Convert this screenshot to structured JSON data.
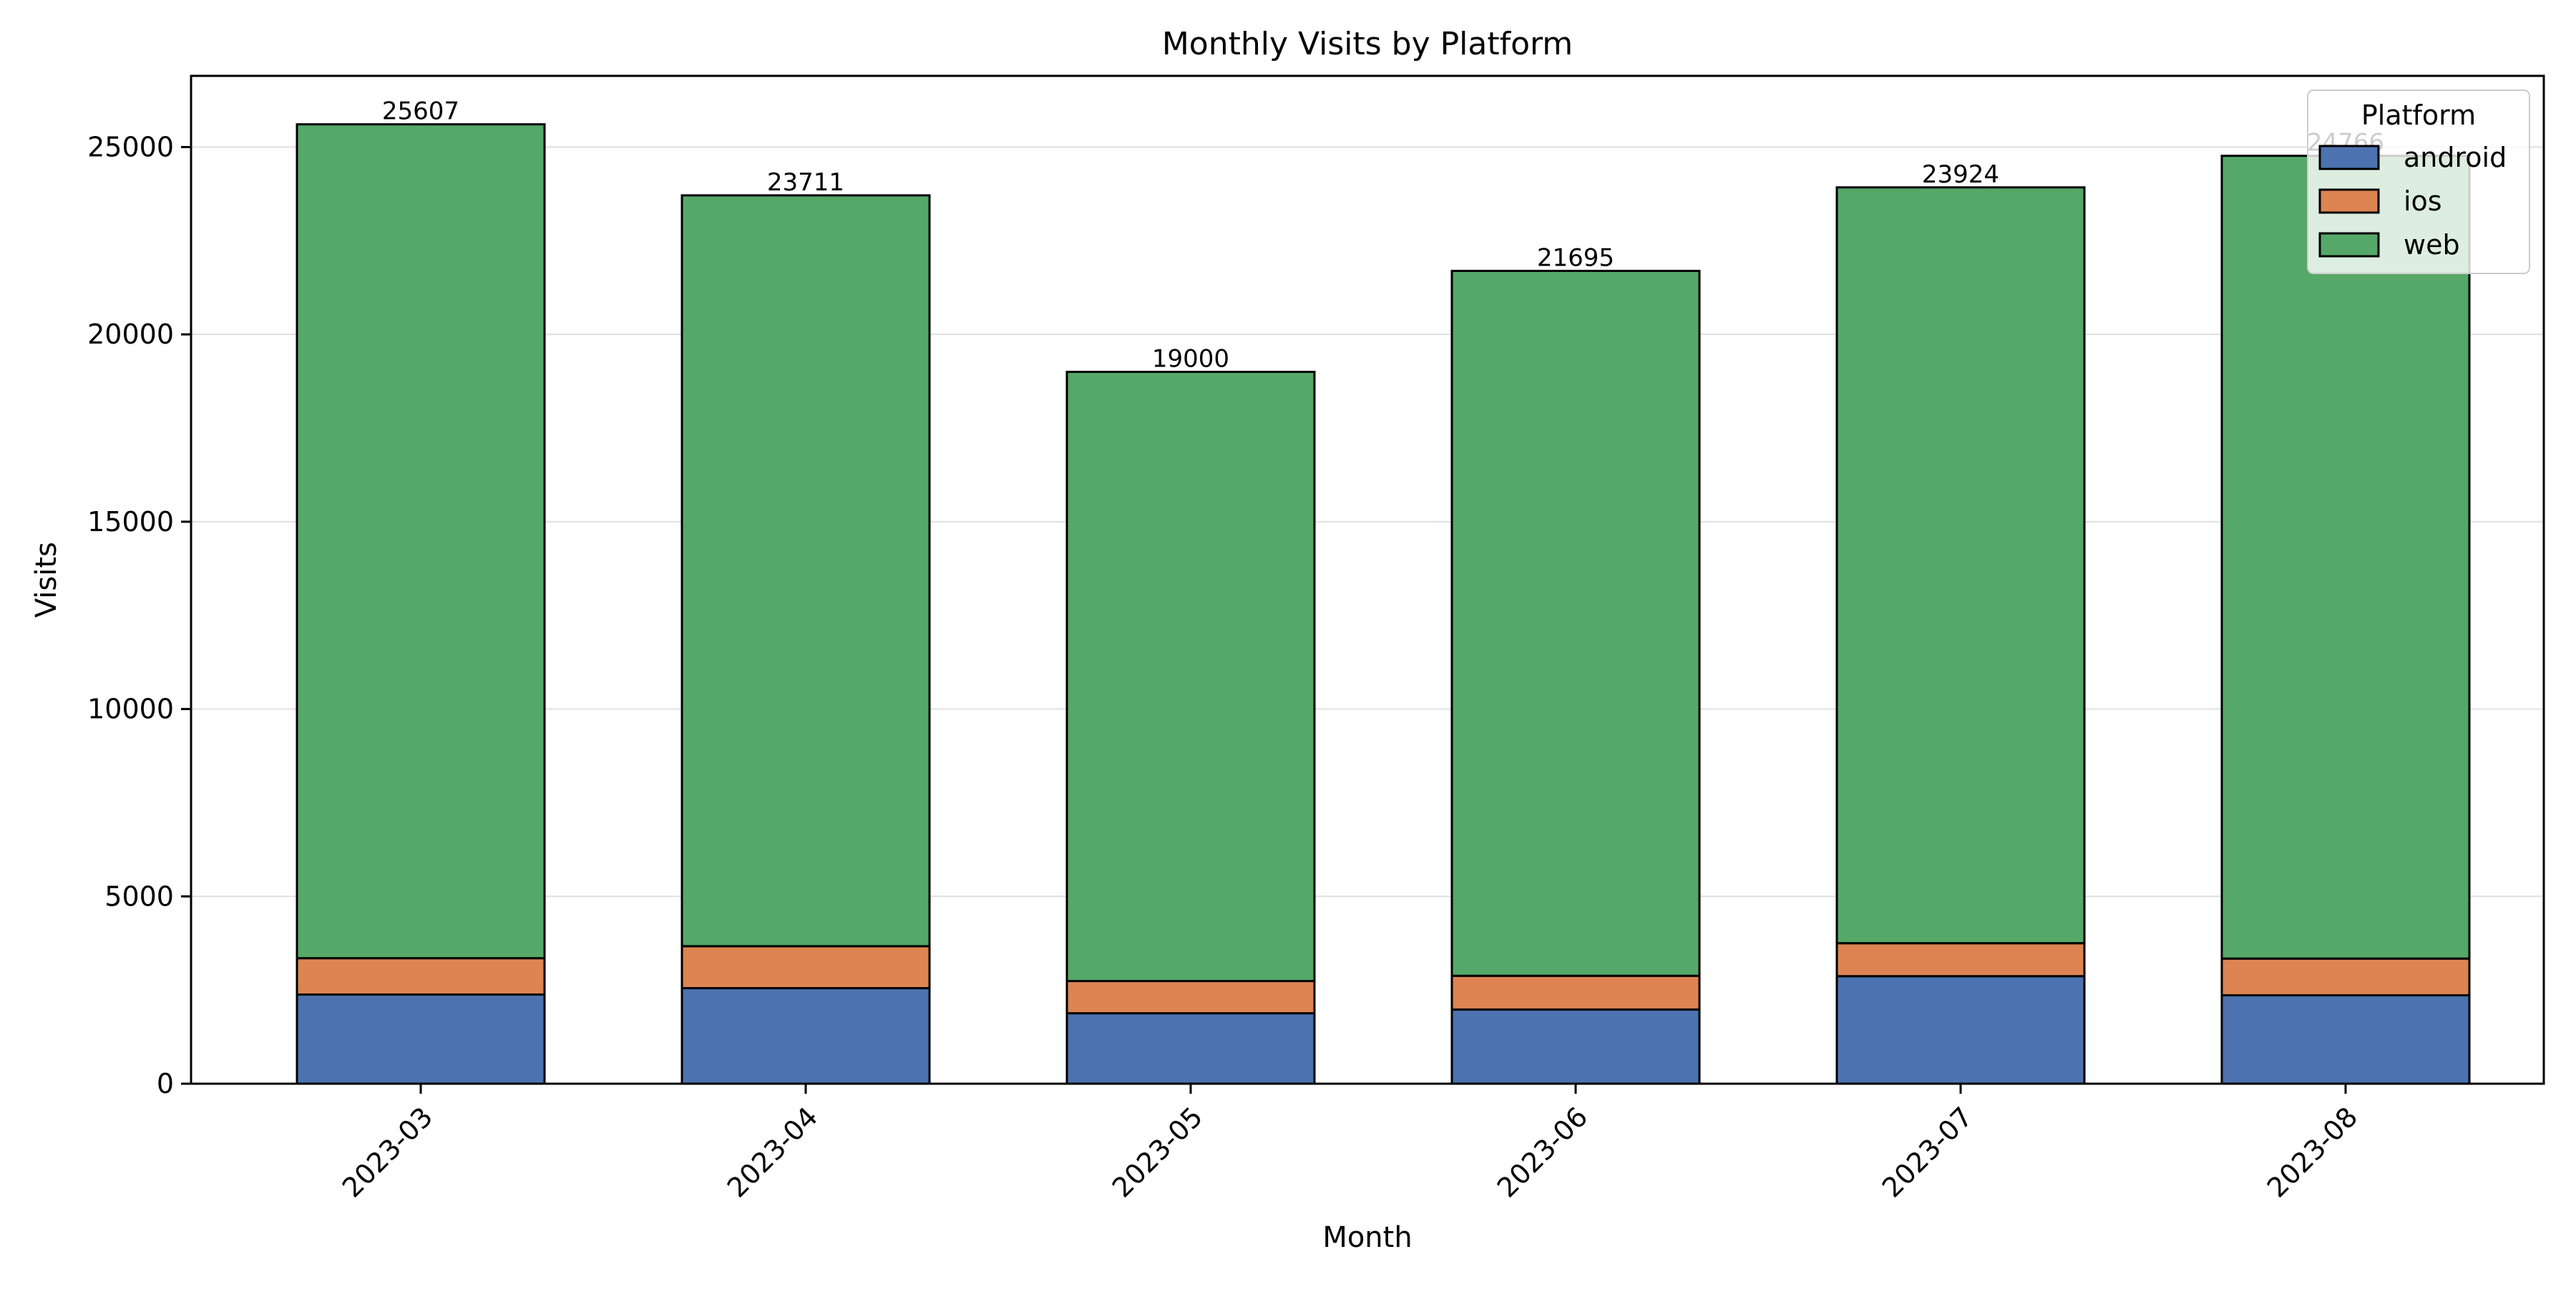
{
  "chart_data": {
    "type": "bar",
    "stacked": true,
    "title": "Monthly Visits by Platform",
    "xlabel": "Month",
    "ylabel": "Visits",
    "categories": [
      "2023-03",
      "2023-04",
      "2023-05",
      "2023-06",
      "2023-07",
      "2023-08"
    ],
    "series": [
      {
        "name": "android",
        "color": "#4c72b0",
        "values": [
          2380,
          2550,
          1880,
          1980,
          2870,
          2360
        ]
      },
      {
        "name": "ios",
        "color": "#dd8452",
        "values": [
          970,
          1120,
          860,
          900,
          880,
          980
        ]
      },
      {
        "name": "web",
        "color": "#55a868",
        "values": [
          22257,
          20041,
          16260,
          18815,
          20174,
          21426
        ]
      }
    ],
    "totals": [
      25607,
      23711,
      19000,
      21695,
      23924,
      24766
    ],
    "ylim": [
      0,
      26900
    ],
    "yticks": [
      0,
      5000,
      10000,
      15000,
      20000,
      25000
    ],
    "grid": "horizontal",
    "legend": {
      "title": "Platform",
      "placement": "top-right"
    }
  }
}
